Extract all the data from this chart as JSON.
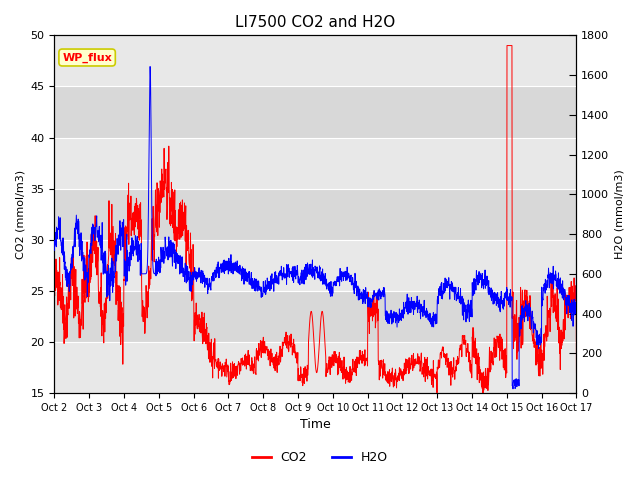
{
  "title": "LI7500 CO2 and H2O",
  "xlabel": "Time",
  "ylabel_left": "CO2 (mmol/m3)",
  "ylabel_right": "H2O (mmol/m3)",
  "xlim": [
    0,
    15
  ],
  "ylim_left": [
    15,
    50
  ],
  "ylim_right": [
    0,
    1800
  ],
  "co2_color": "#FF0000",
  "h2o_color": "#0000FF",
  "background_color": "#ffffff",
  "plot_bg_light": "#ebebeb",
  "plot_bg_dark": "#d8d8d8",
  "annotation_text": "WP_flux",
  "annotation_bg": "#ffffcc",
  "annotation_edge": "#cccc00",
  "legend_co2": "CO2",
  "legend_h2o": "H2O",
  "tick_labels": [
    "Oct 2",
    "Oct 3",
    "Oct 4",
    "Oct 5",
    "Oct 6",
    "Oct 7",
    "Oct 8",
    "Oct 9",
    "Oct 10",
    "Oct 11",
    "Oct 12",
    "Oct 13",
    "Oct 14",
    "Oct 15",
    "Oct 16",
    "Oct 17"
  ],
  "h2o_scale": 24.0,
  "grid_color": "#ffffff",
  "band_colors": [
    "#e8e8e8",
    "#d8d8d8"
  ]
}
